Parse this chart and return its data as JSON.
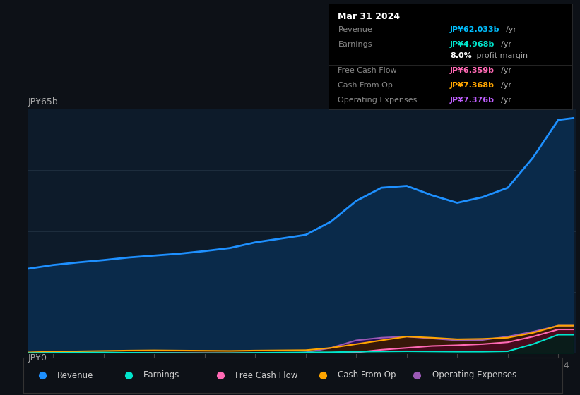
{
  "background_color": "#0d1117",
  "plot_bg_color": "#0d1b2a",
  "grid_color": "#1e2e3e",
  "title_box": {
    "date": "Mar 31 2024",
    "rows": [
      {
        "label": "Revenue",
        "value": "JP¥62.033b",
        "unit": "/yr",
        "value_color": "#00bfff"
      },
      {
        "label": "Earnings",
        "value": "JP¥4.968b",
        "unit": "/yr",
        "value_color": "#00e5cc"
      },
      {
        "label": "",
        "value": "8.0%",
        "unit": " profit margin",
        "value_color": "#ffffff"
      },
      {
        "label": "Free Cash Flow",
        "value": "JP¥6.359b",
        "unit": "/yr",
        "value_color": "#ff69b4"
      },
      {
        "label": "Cash From Op",
        "value": "JP¥7.368b",
        "unit": "/yr",
        "value_color": "#ffa500"
      },
      {
        "label": "Operating Expenses",
        "value": "JP¥7.376b",
        "unit": "/yr",
        "value_color": "#bf5fff"
      }
    ]
  },
  "ylabel_top": "JP¥65b",
  "ylabel_bottom": "JP¥0",
  "x_years": [
    2013.5,
    2014,
    2014.5,
    2015,
    2015.5,
    2016,
    2016.5,
    2017,
    2017.5,
    2018,
    2018.5,
    2019,
    2019.5,
    2020,
    2020.5,
    2021,
    2021.5,
    2022,
    2022.5,
    2023,
    2023.5,
    2024,
    2024.3
  ],
  "revenue": [
    22.5,
    23.5,
    24.2,
    24.8,
    25.5,
    26.0,
    26.5,
    27.2,
    28.0,
    29.5,
    30.5,
    31.5,
    35.0,
    40.5,
    44.0,
    44.5,
    42.0,
    40.0,
    41.5,
    44.0,
    52.0,
    62.0,
    62.5
  ],
  "earnings": [
    0.15,
    0.2,
    0.25,
    0.28,
    0.22,
    0.18,
    0.15,
    0.1,
    0.12,
    0.2,
    0.25,
    0.3,
    0.35,
    0.5,
    0.55,
    0.6,
    0.55,
    0.5,
    0.5,
    0.6,
    2.5,
    5.0,
    5.0
  ],
  "free_cash": [
    0.05,
    0.1,
    0.15,
    0.18,
    0.2,
    0.18,
    0.15,
    0.12,
    0.1,
    0.15,
    0.18,
    -0.1,
    0.1,
    0.3,
    1.0,
    1.5,
    2.0,
    2.2,
    2.5,
    3.0,
    4.5,
    6.4,
    6.4
  ],
  "cash_from_op": [
    0.3,
    0.5,
    0.6,
    0.7,
    0.8,
    0.85,
    0.8,
    0.75,
    0.7,
    0.8,
    0.85,
    0.9,
    1.5,
    2.5,
    3.5,
    4.5,
    4.2,
    3.8,
    3.9,
    4.2,
    5.5,
    7.4,
    7.4
  ],
  "op_expenses": [
    0.0,
    0.0,
    0.0,
    0.0,
    0.0,
    0.0,
    0.0,
    0.0,
    0.0,
    0.0,
    0.0,
    0.3,
    1.5,
    3.5,
    4.2,
    4.5,
    4.0,
    3.5,
    3.6,
    4.5,
    5.8,
    7.4,
    7.4
  ],
  "colors": {
    "revenue": "#1e90ff",
    "earnings": "#00e5cc",
    "free_cash": "#ff69b4",
    "cash_from_op": "#ffa500",
    "op_expenses": "#9b59b6"
  },
  "ylim": [
    0,
    65
  ],
  "legend": [
    {
      "label": "Revenue",
      "color": "#1e90ff"
    },
    {
      "label": "Earnings",
      "color": "#00e5cc"
    },
    {
      "label": "Free Cash Flow",
      "color": "#ff69b4"
    },
    {
      "label": "Cash From Op",
      "color": "#ffa500"
    },
    {
      "label": "Operating Expenses",
      "color": "#9b59b6"
    }
  ]
}
